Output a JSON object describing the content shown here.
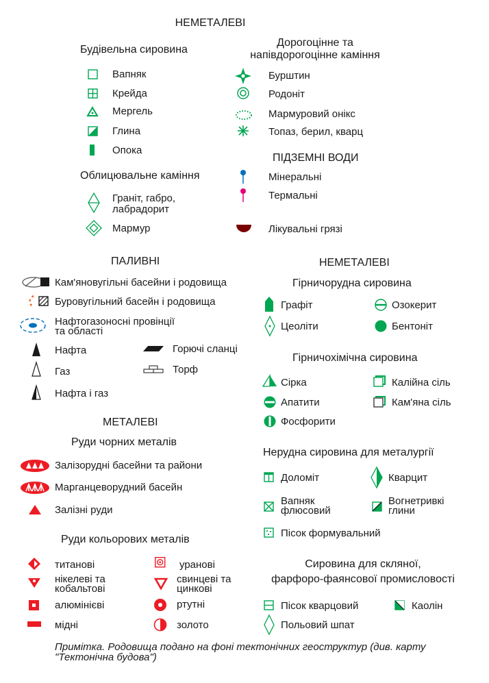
{
  "colors": {
    "green": "#00a651",
    "red": "#ed1c24",
    "blue": "#0071bc",
    "magenta": "#e6007e",
    "brown": "#7a0000",
    "dark": "#1a1a1a"
  },
  "top": {
    "title": "НЕМЕТАЛЕВІ",
    "building": {
      "heading": "Будівельна сировина",
      "items": [
        "Вапняк",
        "Крейда",
        "Мергель",
        "Глина",
        "Опока"
      ],
      "icons": [
        "square-outline-icon",
        "square-grid-icon",
        "triangle-dot-icon",
        "half-filled-square-icon",
        "filled-bar-icon"
      ]
    },
    "facing": {
      "heading": "Облицювальне каміння",
      "items": [
        "Граніт, габро,",
        "лабрадорит",
        "Мармур"
      ],
      "icons": [
        "diamond-line-icon",
        "diamond-square-icon"
      ]
    },
    "precious": {
      "heading_line1": "Дорогоцінне та",
      "heading_line2": "напівдорогоцінне каміння",
      "items": [
        "Бурштин",
        "Родоніт",
        "Мармуровий онікс",
        "Топаз, берил, кварц"
      ],
      "icons": [
        "four-point-star-icon",
        "double-circle-icon",
        "dotted-oval-icon",
        "asterisk-icon"
      ]
    },
    "water": {
      "heading": "ПІДЗЕМНІ ВОДИ",
      "items": [
        "Мінеральні",
        "Термальні",
        "Лікувальні грязі"
      ],
      "icons": [
        "blue-drop-icon",
        "magenta-drop-icon",
        "mud-semicircle-icon"
      ]
    }
  },
  "fuel": {
    "heading": "ПАЛИВНІ",
    "items": [
      "Кам'яновугільні басейни і родовища",
      "Буровугільний басейн і родовища",
      "Нафтогазоносні провінції",
      "та області",
      "Нафта",
      "Газ",
      "Нафта і газ",
      "Горючі сланці",
      "Торф"
    ]
  },
  "metal": {
    "heading": "МЕТАЛЕВІ",
    "ferrous": {
      "heading": "Руди чорних металів",
      "items": [
        "Залізорудні басейни та райони",
        "Марганцеворудний басейн",
        "Залізні руди"
      ]
    },
    "nonferrous": {
      "heading": "Руди кольорових металів",
      "left": [
        "титанові",
        "нікелеві та",
        "кобальтові",
        "алюмінієві",
        "мідні"
      ],
      "right": [
        "уранові",
        "свинцеві та",
        "цинкові",
        "ртутні",
        "золото"
      ]
    }
  },
  "nonmetal2": {
    "heading": "НЕМЕТАЛЕВІ",
    "mining_ore": {
      "heading": "Гірничорудна сировина",
      "items": [
        "Графіт",
        "Озокерит",
        "Цеоліти",
        "Бентоніт"
      ]
    },
    "mining_chem": {
      "heading": "Гірничохімічна сировина",
      "items": [
        "Сірка",
        "Калійна сіль",
        "Апатити",
        "Кам'яна сіль",
        "Фосфорити"
      ]
    },
    "metallurgy": {
      "heading": "Нерудна сировина для металургії",
      "items": [
        "Доломіт",
        "Кварцит",
        "Вапняк",
        "флюсовий",
        "Вогнетривкі",
        "глини",
        "Пісок формувальний"
      ]
    },
    "glass": {
      "heading_line1": "Сировина для скляної,",
      "heading_line2": "фарфоро-фаянсової промисловості",
      "items": [
        "Пісок кварцовий",
        "Каолін",
        "Польовий шпат"
      ]
    }
  },
  "note": {
    "line1": "Примітка. Родовища подано на фоні тектонічних геоструктур (див. карту",
    "line2": "\"Тектонічна будова\")"
  }
}
